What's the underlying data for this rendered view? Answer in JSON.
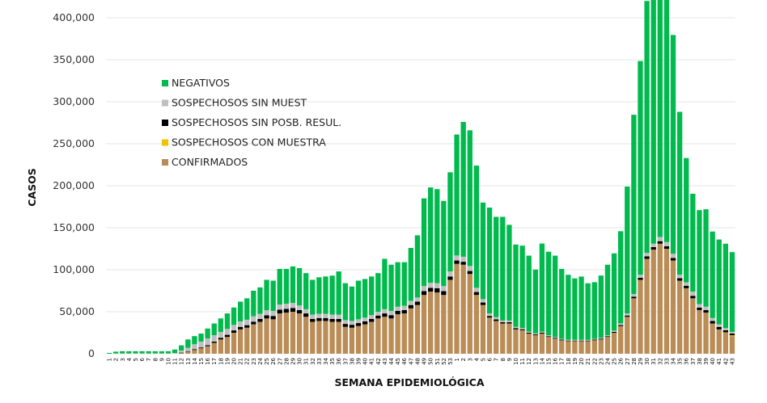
{
  "chart_data": {
    "type": "bar",
    "stacked": true,
    "title": "",
    "xlabel": "SEMANA EPIDEMIOLÓGICA",
    "ylabel": "CASOS",
    "ylim": [
      0,
      400000
    ],
    "yticks": [
      0,
      50000,
      100000,
      150000,
      200000,
      250000,
      300000,
      350000,
      400000
    ],
    "ytick_labels": [
      "0",
      "50,000",
      "100,000",
      "150,000",
      "200,000",
      "250,000",
      "300,000",
      "350,000",
      "400,000"
    ],
    "grid": true,
    "legend_position": "upper-left-inside",
    "categories": [
      "1",
      "2",
      "3",
      "4",
      "5",
      "6",
      "7",
      "8",
      "9",
      "10",
      "11",
      "12",
      "13",
      "14",
      "15",
      "16",
      "17",
      "18",
      "19",
      "20",
      "21",
      "22",
      "23",
      "24",
      "25",
      "26",
      "27",
      "28",
      "29",
      "30",
      "31",
      "32",
      "33",
      "34",
      "35",
      "36",
      "37",
      "38",
      "39",
      "40",
      "41",
      "42",
      "43",
      "44",
      "45",
      "46",
      "47",
      "48",
      "49",
      "50",
      "51",
      "52",
      "53",
      "1",
      "2",
      "3",
      "4",
      "5",
      "6",
      "7",
      "8",
      "9",
      "10",
      "11",
      "12",
      "13",
      "14",
      "15",
      "16",
      "17",
      "18",
      "19",
      "20",
      "21",
      "22",
      "23",
      "24",
      "25",
      "26",
      "27",
      "28",
      "29",
      "30",
      "31",
      "32",
      "33",
      "34",
      "35",
      "36",
      "37",
      "38",
      "39",
      "40",
      "41",
      "42",
      "43"
    ],
    "series": [
      {
        "name": "CONFIRMADOS",
        "color": "#BA8C56",
        "values": [
          0,
          0,
          0,
          0,
          0,
          0,
          0,
          0,
          0,
          0,
          0,
          1000,
          2500,
          4500,
          6500,
          9000,
          13000,
          17000,
          20000,
          25000,
          29000,
          31000,
          35000,
          38000,
          42000,
          41000,
          48000,
          49000,
          50000,
          48000,
          44000,
          38000,
          39000,
          39000,
          38000,
          38000,
          32000,
          31000,
          33000,
          35000,
          38000,
          42000,
          44000,
          42000,
          47000,
          48000,
          54000,
          58000,
          70000,
          74000,
          73000,
          70000,
          88000,
          107000,
          106000,
          95000,
          70000,
          58000,
          43000,
          39000,
          36000,
          36000,
          29000,
          28000,
          24000,
          22000,
          24000,
          20000,
          18000,
          16000,
          15000,
          15000,
          15000,
          15000,
          16000,
          17000,
          20000,
          25000,
          33000,
          44000,
          66000,
          88000,
          113000,
          124000,
          131000,
          125000,
          111000,
          87000,
          78000,
          66000,
          52000,
          49000,
          36000,
          29000,
          25000,
          21000,
          16000
        ]
      },
      {
        "name": "SOSPECHOSOS CON MUESTRA",
        "color": "#F2C200",
        "values": [
          0,
          0,
          0,
          0,
          0,
          0,
          0,
          0,
          0,
          0,
          0,
          0,
          0,
          0,
          0,
          0,
          0,
          0,
          0,
          0,
          0,
          0,
          0,
          0,
          0,
          0,
          0,
          0,
          0,
          0,
          0,
          0,
          0,
          0,
          0,
          0,
          0,
          0,
          0,
          0,
          0,
          0,
          0,
          0,
          0,
          0,
          0,
          0,
          0,
          0,
          0,
          0,
          0,
          0,
          0,
          0,
          0,
          0,
          0,
          0,
          0,
          0,
          0,
          0,
          0,
          0,
          0,
          0,
          0,
          0,
          0,
          0,
          0,
          0,
          0,
          0,
          0,
          0,
          0,
          0,
          0,
          0,
          0,
          0,
          0,
          0,
          0,
          0,
          0,
          0,
          0,
          0,
          0,
          0,
          500,
          1000,
          3000
        ]
      },
      {
        "name": "SOSPECHOSOS SIN POSB. RESUL.",
        "color": "#000000",
        "values": [
          0,
          0,
          0,
          0,
          0,
          0,
          0,
          0,
          0,
          0,
          0,
          300,
          600,
          800,
          1000,
          1200,
          1500,
          2000,
          2500,
          2800,
          3000,
          3000,
          3200,
          3500,
          3800,
          4000,
          4500,
          4500,
          4500,
          4000,
          4000,
          3500,
          3500,
          3500,
          3500,
          3500,
          3500,
          3500,
          3500,
          3500,
          3500,
          3500,
          4000,
          4000,
          4000,
          4000,
          4000,
          4000,
          4500,
          4500,
          5000,
          4500,
          4000,
          4000,
          3500,
          3500,
          3500,
          3000,
          2000,
          2000,
          1500,
          1500,
          1500,
          1200,
          1000,
          1000,
          1000,
          900,
          800,
          800,
          700,
          700,
          700,
          700,
          800,
          800,
          900,
          1000,
          1200,
          1500,
          2000,
          2500,
          3000,
          3000,
          3000,
          3000,
          3000,
          3000,
          3000,
          3000,
          3000,
          3000,
          3000,
          3000,
          2500,
          2000,
          1000
        ]
      },
      {
        "name": "SOSPECHOSOS SIN MUEST",
        "color": "#BFBFBF",
        "values": [
          0,
          300,
          400,
          400,
          400,
          400,
          400,
          400,
          400,
          400,
          800,
          2500,
          4000,
          6000,
          7000,
          8000,
          7500,
          7000,
          7000,
          6500,
          6500,
          6500,
          6500,
          6000,
          6000,
          6000,
          6000,
          6000,
          6000,
          5500,
          5000,
          5000,
          5000,
          5000,
          5000,
          5000,
          4500,
          4500,
          4500,
          4500,
          4500,
          4500,
          5000,
          5000,
          5000,
          5000,
          5000,
          5000,
          6000,
          6000,
          6000,
          6000,
          6000,
          6000,
          6000,
          6000,
          5000,
          4000,
          3000,
          2500,
          2000,
          2000,
          1500,
          1500,
          1300,
          1200,
          1200,
          1100,
          1000,
          1000,
          1000,
          900,
          900,
          900,
          1000,
          1100,
          1200,
          1500,
          2000,
          2500,
          3000,
          3500,
          4000,
          4000,
          5000,
          5000,
          5000,
          4000,
          4000,
          5000,
          4000,
          4000,
          3500,
          3000,
          2500,
          2000,
          1500
        ]
      },
      {
        "name": "NEGATIVOS",
        "color": "#00BA4D",
        "values": [
          1000,
          2200,
          2600,
          2600,
          2600,
          2600,
          2600,
          2600,
          2600,
          2600,
          4200,
          6200,
          9900,
          9700,
          9500,
          11800,
          14000,
          16000,
          18500,
          20700,
          23500,
          25500,
          30300,
          31500,
          36200,
          36000,
          42500,
          41500,
          43500,
          44500,
          43000,
          41500,
          43500,
          44500,
          46500,
          51500,
          44000,
          41000,
          46000,
          46000,
          46000,
          46000,
          60000,
          55000,
          53000,
          52000,
          63000,
          74000,
          104500,
          113500,
          112000,
          101500,
          118000,
          144000,
          160500,
          161500,
          145500,
          115000,
          126000,
          119500,
          123500,
          114000,
          98000,
          98000,
          90500,
          76000,
          105000,
          99500,
          97000,
          83200,
          77300,
          73100,
          75300,
          67300,
          67400,
          74200,
          83900,
          92000,
          109700,
          151000,
          213500,
          254500,
          300000,
          300000,
          305000,
          294000,
          260500,
          194000,
          148000,
          116500,
          112000,
          116000,
          103000,
          101000,
          100500,
          95000,
          79000
        ]
      }
    ]
  },
  "legend": {
    "items": [
      {
        "label": "NEGATIVOS",
        "color": "#00BA4D"
      },
      {
        "label": "SOSPECHOSOS SIN MUEST",
        "color": "#BFBFBF"
      },
      {
        "label": "SOSPECHOSOS SIN POSB. RESUL.",
        "color": "#000000"
      },
      {
        "label": "SOSPECHOSOS CON MUESTRA",
        "color": "#F2C200"
      },
      {
        "label": "CONFIRMADOS",
        "color": "#BA8C56"
      }
    ]
  }
}
